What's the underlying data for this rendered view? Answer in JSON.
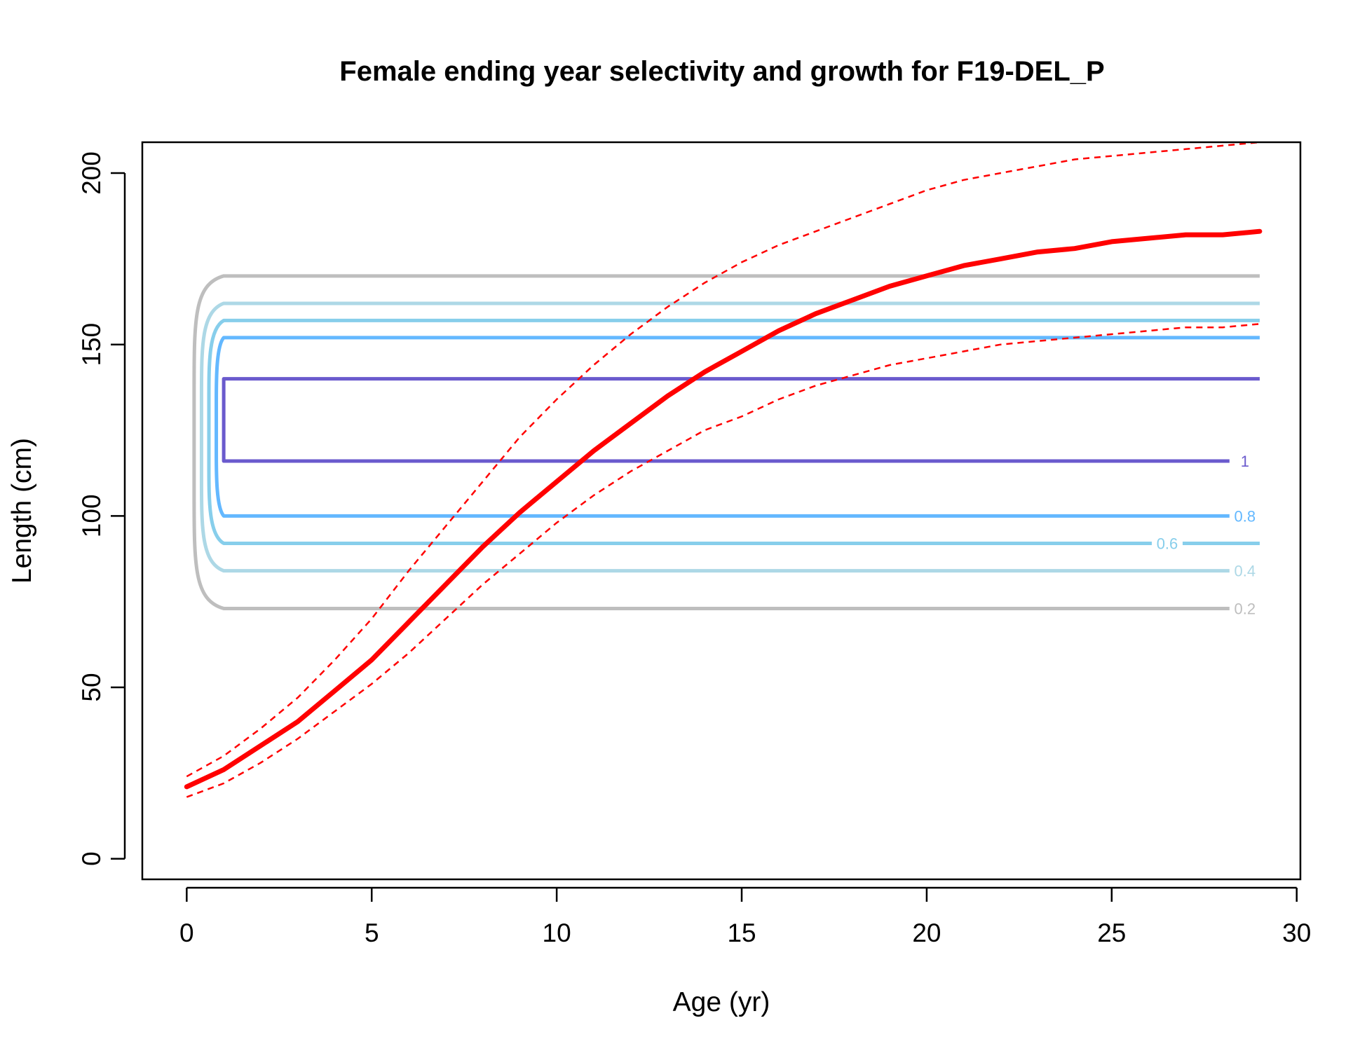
{
  "chart_data": {
    "type": "line",
    "title": "Female ending year selectivity and growth for F19-DEL_P",
    "xlabel": "Age (yr)",
    "ylabel": "Length (cm)",
    "xlim": [
      -1.2,
      30.1
    ],
    "ylim": [
      -6,
      209
    ],
    "xticks": [
      0,
      5,
      10,
      15,
      20,
      25,
      30
    ],
    "yticks": [
      0,
      50,
      100,
      150,
      200
    ],
    "grid": false,
    "legend": "none",
    "growth": {
      "color": "#ff0000",
      "x": [
        0,
        1,
        2,
        3,
        4,
        5,
        6,
        7,
        8,
        9,
        10,
        11,
        12,
        13,
        14,
        15,
        16,
        17,
        18,
        19,
        20,
        21,
        22,
        23,
        24,
        25,
        26,
        27,
        28,
        29
      ],
      "mean": [
        21,
        26,
        33,
        40,
        49,
        58,
        69,
        80,
        91,
        101,
        110,
        119,
        127,
        135,
        142,
        148,
        154,
        159,
        163,
        167,
        170,
        173,
        175,
        177,
        178,
        180,
        181,
        182,
        182,
        183
      ],
      "upper": [
        24,
        30,
        38,
        47,
        58,
        70,
        84,
        97,
        110,
        123,
        134,
        144,
        153,
        161,
        168,
        174,
        179,
        183,
        187,
        191,
        195,
        198,
        200,
        202,
        204,
        205,
        206,
        207,
        208,
        209
      ],
      "lower": [
        18,
        22,
        28,
        35,
        43,
        51,
        60,
        70,
        80,
        89,
        98,
        106,
        113,
        119,
        125,
        129,
        134,
        138,
        141,
        144,
        146,
        148,
        150,
        151,
        152,
        153,
        154,
        155,
        155,
        156
      ]
    },
    "contours": [
      {
        "level": 0.2,
        "label": "0.2",
        "color": "#bebebe",
        "low": 73,
        "high": 170,
        "xleft_inner": 1.0,
        "xleft_outer": 0.2
      },
      {
        "level": 0.4,
        "label": "0.4",
        "color": "#add8e6",
        "low": 84,
        "high": 162,
        "xleft_inner": 1.0,
        "xleft_outer": 0.4
      },
      {
        "level": 0.6,
        "label": "0.6",
        "color": "#87ceeb",
        "low": 92,
        "high": 157,
        "xleft_inner": 1.0,
        "xleft_outer": 0.6
      },
      {
        "level": 0.8,
        "label": "0.8",
        "color": "#63b8ff",
        "low": 100,
        "high": 152,
        "xleft_inner": 1.0,
        "xleft_outer": 0.8
      },
      {
        "level": 1,
        "label": "1",
        "color": "#6a5acd",
        "low": 116,
        "high": 140,
        "xleft_inner": 1.0,
        "xleft_outer": 1.0
      }
    ]
  }
}
